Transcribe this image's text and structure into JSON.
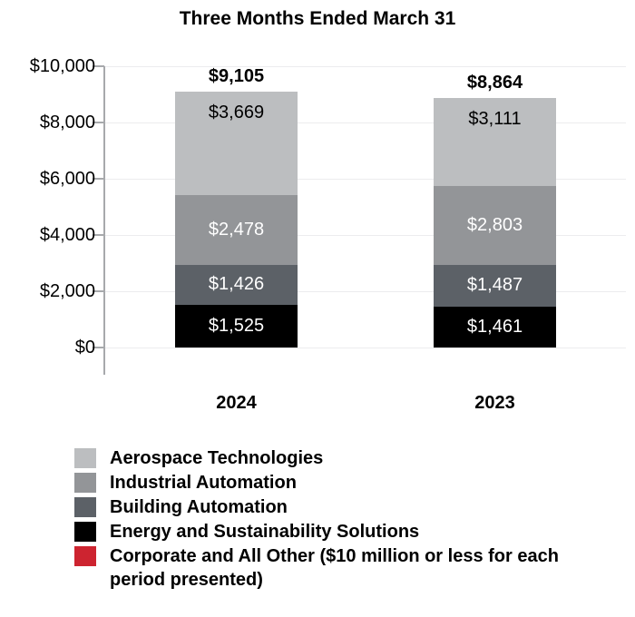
{
  "title": "Three Months Ended March 31",
  "chart_data": {
    "type": "bar",
    "stacked": true,
    "title": "Three Months Ended March 31",
    "categories": [
      "2024",
      "2023"
    ],
    "series": [
      {
        "name": "Energy and Sustainability Solutions",
        "color": "#000000",
        "label_color": "#ffffff",
        "values": [
          1525,
          1461
        ],
        "labels": [
          "$1,525",
          "$1,461"
        ]
      },
      {
        "name": "Building Automation",
        "color": "#5c6167",
        "label_color": "#ffffff",
        "values": [
          1426,
          1487
        ],
        "labels": [
          "$1,426",
          "$1,487"
        ]
      },
      {
        "name": "Industrial Automation",
        "color": "#939598",
        "label_color": "#ffffff",
        "values": [
          2478,
          2803
        ],
        "labels": [
          "$2,478",
          "$2,803"
        ]
      },
      {
        "name": "Aerospace Technologies",
        "color": "#bcbec0",
        "label_color": "#000000",
        "values": [
          3669,
          3111
        ],
        "labels": [
          "$3,669",
          "$3,111"
        ]
      },
      {
        "name": "Corporate and All Other",
        "color": "#cd2430",
        "label_color": "#ffffff",
        "values": [
          0,
          0
        ],
        "labels": [
          "",
          ""
        ],
        "note": "$10 million or less for each period presented"
      }
    ],
    "totals": {
      "values": [
        9105,
        8864
      ],
      "labels": [
        "$9,105",
        "$8,864"
      ]
    },
    "y_axis": {
      "ylim": [
        0,
        10000
      ],
      "ticks": [
        0,
        2000,
        4000,
        6000,
        8000,
        10000
      ],
      "tick_labels": [
        "$0",
        "$2,000",
        "$4,000",
        "$6,000",
        "$8,000",
        "$10,000"
      ],
      "grid": true
    },
    "legend_position": "bottom-left"
  },
  "legend": {
    "items": [
      {
        "label": "Aerospace Technologies",
        "color": "#bcbec0"
      },
      {
        "label": "Industrial Automation",
        "color": "#939598"
      },
      {
        "label": "Building Automation",
        "color": "#5c6167"
      },
      {
        "label": "Energy and Sustainability Solutions",
        "color": "#000000"
      },
      {
        "label": "Corporate and All Other ($10 million or less for each period presented)",
        "color": "#cd2430"
      }
    ]
  }
}
